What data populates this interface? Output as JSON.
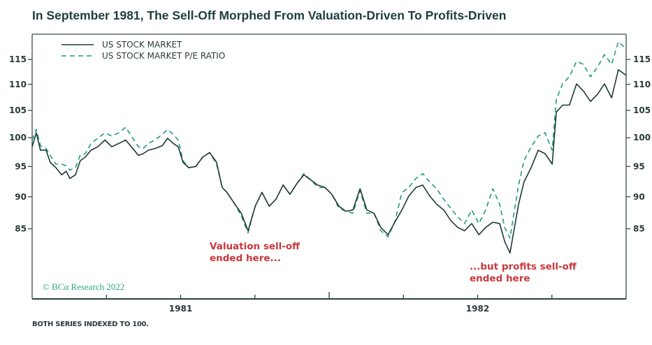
{
  "chart_data": {
    "type": "line",
    "title": "In September 1981, The Sell-Off Morphed From Valuation-Driven To Profits-Driven",
    "xlabel": "",
    "ylabel": "",
    "y_scale": "log",
    "xlim": [
      1980.5,
      1982.5
    ],
    "ylim": [
      75,
      120.3
    ],
    "yticks": [
      85,
      90,
      95,
      100,
      105,
      110,
      115
    ],
    "ytick_labels": [
      "85",
      "90",
      "95",
      "100",
      "105",
      "110",
      "115"
    ],
    "xticks_minor": [
      1980.75,
      1981.0,
      1981.25,
      1981.5,
      1981.75,
      1982.0,
      1982.25
    ],
    "xtick_labels": [
      {
        "x": 1981.0,
        "label": "1981"
      },
      {
        "x": 1982.0,
        "label": "1982"
      }
    ],
    "grid": false,
    "legend_placement": "top-left",
    "x": [
      1980.5,
      1980.514,
      1980.528,
      1980.547,
      1980.561,
      1980.58,
      1980.599,
      1980.615,
      1980.627,
      1980.646,
      1980.662,
      1980.679,
      1980.698,
      1980.721,
      1980.745,
      1980.768,
      1980.792,
      1980.815,
      1980.834,
      1980.858,
      1980.874,
      1980.891,
      1980.914,
      1980.938,
      1980.956,
      1980.975,
      1980.992,
      1981.008,
      1981.027,
      1981.051,
      1981.074,
      1981.098,
      1981.121,
      1981.14,
      1981.156,
      1981.18,
      1981.204,
      1981.227,
      1981.251,
      1981.274,
      1981.298,
      1981.321,
      1981.345,
      1981.368,
      1981.392,
      1981.415,
      1981.439,
      1981.462,
      1981.486,
      1981.509,
      1981.533,
      1981.556,
      1981.58,
      1981.604,
      1981.627,
      1981.651,
      1981.674,
      1981.698,
      1981.721,
      1981.745,
      1981.768,
      1981.792,
      1981.815,
      1981.839,
      1981.862,
      1981.886,
      1981.909,
      1981.933,
      1981.956,
      1981.98,
      1982.004,
      1982.027,
      1982.051,
      1982.074,
      1982.091,
      1982.109,
      1982.124,
      1982.138,
      1982.156,
      1982.18,
      1982.204,
      1982.227,
      1982.251,
      1982.265,
      1982.286,
      1982.309,
      1982.333,
      1982.356,
      1982.38,
      1982.404,
      1982.427,
      1982.451,
      1982.474,
      1982.5
    ],
    "series": [
      {
        "name": "US STOCK MARKET",
        "style": "solid",
        "color": "#1f3838",
        "values": [
          98.4,
          100.9,
          97.8,
          97.8,
          95.7,
          94.8,
          93.6,
          94.2,
          93.0,
          93.6,
          96.0,
          96.6,
          97.8,
          98.4,
          99.6,
          98.4,
          99.0,
          99.6,
          98.4,
          96.9,
          97.2,
          97.8,
          98.1,
          98.6,
          99.9,
          99.0,
          98.4,
          95.7,
          94.8,
          95.0,
          96.6,
          97.4,
          95.7,
          91.5,
          90.7,
          89.0,
          87.4,
          84.7,
          88.5,
          90.7,
          88.5,
          89.6,
          91.9,
          90.4,
          92.2,
          93.6,
          92.7,
          91.9,
          91.5,
          90.4,
          88.5,
          87.7,
          87.9,
          91.3,
          87.9,
          87.4,
          85.2,
          84.1,
          86.0,
          87.9,
          90.1,
          91.5,
          91.9,
          90.1,
          88.8,
          87.9,
          86.3,
          85.2,
          84.7,
          85.8,
          84.1,
          85.2,
          86.0,
          85.8,
          83.1,
          81.4,
          85.2,
          88.8,
          92.4,
          94.8,
          97.8,
          97.2,
          95.4,
          104.7,
          106.0,
          106.0,
          110.1,
          108.7,
          106.7,
          108.1,
          110.1,
          107.4,
          112.9,
          111.8
        ]
      },
      {
        "name": "US STOCK MARKET P/E RATIO",
        "style": "dashed",
        "color": "#1f9c78",
        "values": [
          99.6,
          101.5,
          98.6,
          98.1,
          96.9,
          95.4,
          95.4,
          95.1,
          94.4,
          94.8,
          97.0,
          97.2,
          99.0,
          99.9,
          100.9,
          100.3,
          100.9,
          101.9,
          100.3,
          98.4,
          98.1,
          99.0,
          99.6,
          100.6,
          101.5,
          100.6,
          99.6,
          96.0,
          94.8,
          95.0,
          96.6,
          97.4,
          95.4,
          91.5,
          90.7,
          89.0,
          87.0,
          84.4,
          88.5,
          90.7,
          88.5,
          89.6,
          91.9,
          90.4,
          92.2,
          93.8,
          92.7,
          91.5,
          91.5,
          90.4,
          88.2,
          87.7,
          87.4,
          91.0,
          87.4,
          87.4,
          84.7,
          83.8,
          86.0,
          90.7,
          91.5,
          93.0,
          93.8,
          92.4,
          91.3,
          89.6,
          88.2,
          86.8,
          85.8,
          87.9,
          85.8,
          87.9,
          91.3,
          88.8,
          85.2,
          83.6,
          87.9,
          91.9,
          96.0,
          98.4,
          100.3,
          100.9,
          97.8,
          107.1,
          110.1,
          111.5,
          114.6,
          114.0,
          111.5,
          113.5,
          116.0,
          114.0,
          118.7,
          117.2
        ]
      }
    ],
    "annotations": [
      {
        "lines": [
          "Valuation sell-off",
          "ended here..."
        ],
        "color": "#c8383b"
      },
      {
        "lines": [
          "...but profits sell-off",
          "ended here"
        ],
        "color": "#c8383b"
      }
    ],
    "source": "© BCα Research 2022",
    "footnote": "BOTH SERIES INDEXED TO 100."
  }
}
